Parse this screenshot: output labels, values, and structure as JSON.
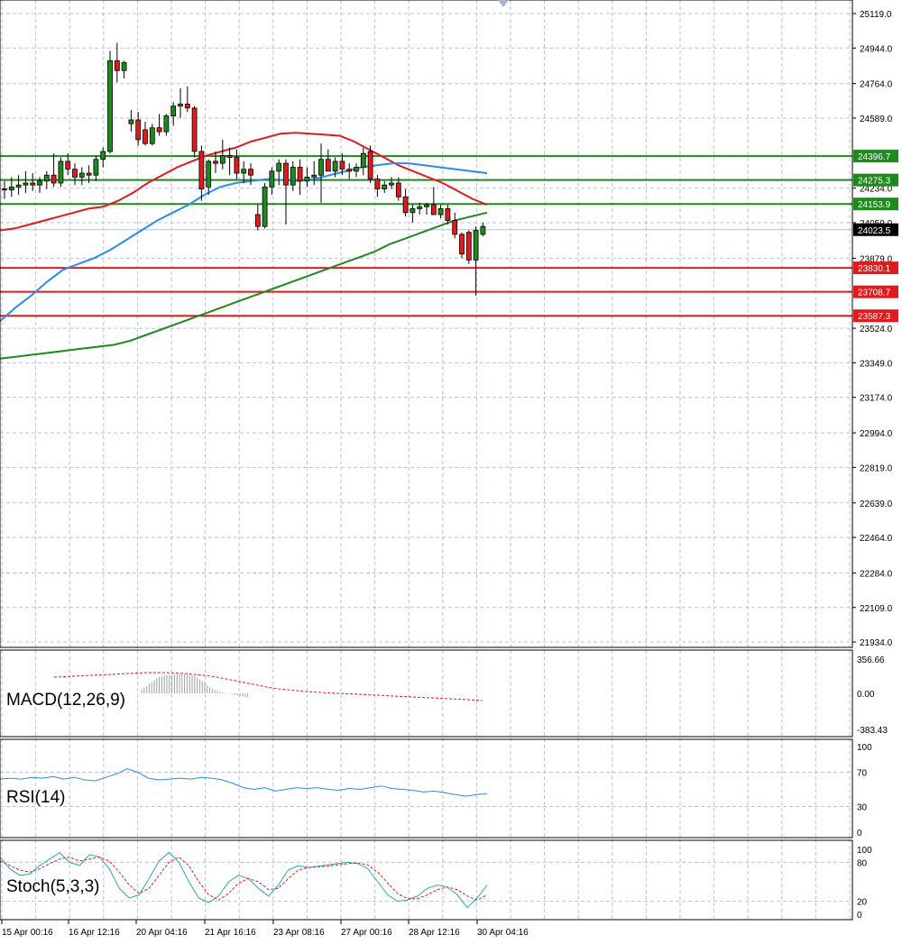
{
  "chart_data": [
    {
      "type": "candlestick",
      "pane": "price",
      "y_ticks": [
        "25119.0",
        "24944.0",
        "24764.0",
        "24589.0",
        "24234.0",
        "24059.0",
        "23879.0",
        "23524.0",
        "23349.0",
        "23174.0",
        "22994.0",
        "22819.0",
        "22639.0",
        "22464.0",
        "22284.0",
        "22109.0",
        "21934.0"
      ],
      "ylim": [
        21934,
        25119
      ],
      "current_price": "24023.5",
      "level_labels": {
        "resistance": [
          "24396.7",
          "24275.3",
          "24153.9"
        ],
        "support": [
          "23830.1",
          "23708.7",
          "23587.3"
        ]
      },
      "resistance_levels": [
        24396.7,
        24275.3,
        24153.9
      ],
      "support_levels": [
        23830.1,
        23708.7,
        23587.3
      ],
      "x_labels": [
        "15 Apr 00:16",
        "16 Apr 12:16",
        "20 Apr 04:16",
        "21 Apr 16:16",
        "23 Apr 08:16",
        "27 Apr 00:16",
        "28 Apr 12:16",
        "30 Apr 04:16"
      ],
      "candles": [
        {
          "o": 24230,
          "h": 24270,
          "l": 24180,
          "c": 24225
        },
        {
          "o": 24225,
          "h": 24290,
          "l": 24190,
          "c": 24240
        },
        {
          "o": 24240,
          "h": 24300,
          "l": 24200,
          "c": 24250
        },
        {
          "o": 24250,
          "h": 24320,
          "l": 24210,
          "c": 24260
        },
        {
          "o": 24260,
          "h": 24310,
          "l": 24220,
          "c": 24250
        },
        {
          "o": 24250,
          "h": 24290,
          "l": 24210,
          "c": 24270
        },
        {
          "o": 24270,
          "h": 24320,
          "l": 24230,
          "c": 24300
        },
        {
          "o": 24300,
          "h": 24410,
          "l": 24240,
          "c": 24260
        },
        {
          "o": 24260,
          "h": 24390,
          "l": 24240,
          "c": 24370
        },
        {
          "o": 24370,
          "h": 24410,
          "l": 24300,
          "c": 24330
        },
        {
          "o": 24330,
          "h": 24360,
          "l": 24250,
          "c": 24290
        },
        {
          "o": 24290,
          "h": 24340,
          "l": 24250,
          "c": 24310
        },
        {
          "o": 24310,
          "h": 24350,
          "l": 24260,
          "c": 24300
        },
        {
          "o": 24300,
          "h": 24400,
          "l": 24270,
          "c": 24380
        },
        {
          "o": 24380,
          "h": 24440,
          "l": 24340,
          "c": 24420
        },
        {
          "o": 24420,
          "h": 24930,
          "l": 24410,
          "c": 24880
        },
        {
          "o": 24880,
          "h": 24970,
          "l": 24770,
          "c": 24830
        },
        {
          "o": 24830,
          "h": 24880,
          "l": 24790,
          "c": 24870
        },
        {
          "o": 24560,
          "h": 24630,
          "l": 24520,
          "c": 24580
        },
        {
          "o": 24580,
          "h": 24620,
          "l": 24450,
          "c": 24480
        },
        {
          "o": 24530,
          "h": 24570,
          "l": 24450,
          "c": 24460
        },
        {
          "o": 24460,
          "h": 24560,
          "l": 24450,
          "c": 24540
        },
        {
          "o": 24540,
          "h": 24610,
          "l": 24500,
          "c": 24520
        },
        {
          "o": 24520,
          "h": 24610,
          "l": 24500,
          "c": 24600
        },
        {
          "o": 24600,
          "h": 24670,
          "l": 24550,
          "c": 24650
        },
        {
          "o": 24650,
          "h": 24740,
          "l": 24590,
          "c": 24660
        },
        {
          "o": 24660,
          "h": 24750,
          "l": 24620,
          "c": 24640
        },
        {
          "o": 24640,
          "h": 24650,
          "l": 24390,
          "c": 24420
        },
        {
          "o": 24420,
          "h": 24450,
          "l": 24170,
          "c": 24230
        },
        {
          "o": 24240,
          "h": 24380,
          "l": 24200,
          "c": 24370
        },
        {
          "o": 24370,
          "h": 24420,
          "l": 24310,
          "c": 24360
        },
        {
          "o": 24360,
          "h": 24480,
          "l": 24330,
          "c": 24400
        },
        {
          "o": 24400,
          "h": 24440,
          "l": 24300,
          "c": 24390
        },
        {
          "o": 24390,
          "h": 24430,
          "l": 24280,
          "c": 24310
        },
        {
          "o": 24310,
          "h": 24370,
          "l": 24260,
          "c": 24330
        },
        {
          "o": 24330,
          "h": 24360,
          "l": 24250,
          "c": 24300
        },
        {
          "o": 24100,
          "h": 24150,
          "l": 24020,
          "c": 24040
        },
        {
          "o": 24040,
          "h": 24260,
          "l": 24030,
          "c": 24240
        },
        {
          "o": 24240,
          "h": 24340,
          "l": 24200,
          "c": 24320
        },
        {
          "o": 24320,
          "h": 24380,
          "l": 24250,
          "c": 24360
        },
        {
          "o": 24360,
          "h": 24380,
          "l": 24050,
          "c": 24250
        },
        {
          "o": 24250,
          "h": 24370,
          "l": 24220,
          "c": 24340
        },
        {
          "o": 24340,
          "h": 24380,
          "l": 24200,
          "c": 24270
        },
        {
          "o": 24270,
          "h": 24340,
          "l": 24240,
          "c": 24290
        },
        {
          "o": 24290,
          "h": 24370,
          "l": 24250,
          "c": 24300
        },
        {
          "o": 24300,
          "h": 24460,
          "l": 24160,
          "c": 24380
        },
        {
          "o": 24380,
          "h": 24430,
          "l": 24320,
          "c": 24320
        },
        {
          "o": 24320,
          "h": 24390,
          "l": 24290,
          "c": 24370
        },
        {
          "o": 24370,
          "h": 24410,
          "l": 24300,
          "c": 24330
        },
        {
          "o": 24330,
          "h": 24360,
          "l": 24280,
          "c": 24320
        },
        {
          "o": 24320,
          "h": 24360,
          "l": 24290,
          "c": 24340
        },
        {
          "o": 24340,
          "h": 24440,
          "l": 24300,
          "c": 24410
        },
        {
          "o": 24420,
          "h": 24450,
          "l": 24260,
          "c": 24280
        },
        {
          "o": 24280,
          "h": 24300,
          "l": 24190,
          "c": 24230
        },
        {
          "o": 24230,
          "h": 24270,
          "l": 24210,
          "c": 24250
        },
        {
          "o": 24250,
          "h": 24290,
          "l": 24230,
          "c": 24260
        },
        {
          "o": 24260,
          "h": 24290,
          "l": 24170,
          "c": 24190
        },
        {
          "o": 24190,
          "h": 24230,
          "l": 24090,
          "c": 24110
        },
        {
          "o": 24110,
          "h": 24150,
          "l": 24060,
          "c": 24130
        },
        {
          "o": 24130,
          "h": 24160,
          "l": 24100,
          "c": 24140
        },
        {
          "o": 24140,
          "h": 24160,
          "l": 24100,
          "c": 24150
        },
        {
          "o": 24150,
          "h": 24240,
          "l": 24100,
          "c": 24100
        },
        {
          "o": 24100,
          "h": 24150,
          "l": 24080,
          "c": 24130
        },
        {
          "o": 24130,
          "h": 24150,
          "l": 24050,
          "c": 24070
        },
        {
          "o": 24070,
          "h": 24110,
          "l": 23980,
          "c": 24000
        },
        {
          "o": 24000,
          "h": 24010,
          "l": 23880,
          "c": 23900
        },
        {
          "o": 24010,
          "h": 24020,
          "l": 23850,
          "c": 23870
        },
        {
          "o": 23870,
          "h": 24040,
          "l": 23690,
          "c": 24020
        },
        {
          "o": 24000,
          "h": 24060,
          "l": 23990,
          "c": 24040
        }
      ],
      "series": [
        {
          "name": "MA red",
          "color": "#e31a1c",
          "values": [
            24020,
            24030,
            24050,
            24070,
            24090,
            24110,
            24130,
            24140,
            24170,
            24210,
            24260,
            24300,
            24340,
            24370,
            24400,
            24420,
            24440,
            24470,
            24490,
            24510,
            24515,
            24510,
            24505,
            24500,
            24470,
            24430,
            24390,
            24350,
            24320,
            24290,
            24260,
            24220,
            24180,
            24150
          ]
        },
        {
          "name": "MA blue",
          "color": "#2b8ce8",
          "values": [
            23560,
            23630,
            23690,
            23760,
            23820,
            23850,
            23880,
            23920,
            23970,
            24020,
            24070,
            24110,
            24150,
            24200,
            24240,
            24260,
            24270,
            24280,
            24275,
            24270,
            24280,
            24300,
            24320,
            24340,
            24350,
            24360,
            24360,
            24350,
            24340,
            24330,
            24320,
            24310
          ]
        },
        {
          "name": "MA green",
          "color": "#1e8a1e",
          "values": [
            23370,
            23380,
            23390,
            23400,
            23410,
            23420,
            23430,
            23440,
            23460,
            23490,
            23520,
            23550,
            23580,
            23610,
            23640,
            23670,
            23700,
            23730,
            23760,
            23790,
            23820,
            23850,
            23880,
            23910,
            23950,
            23980,
            24010,
            24040,
            24070,
            24090,
            24110
          ]
        }
      ]
    },
    {
      "type": "histogram",
      "pane": "macd",
      "label": "MACD(12,26,9)",
      "y_ticks": [
        "356.66",
        "0.00",
        "-383.43"
      ],
      "histogram": [
        40,
        55,
        70,
        95,
        110,
        130,
        150,
        160,
        170,
        175,
        178,
        180,
        182,
        184,
        186,
        188,
        190,
        190,
        188,
        185,
        180,
        170,
        155,
        140,
        120,
        100,
        80,
        60,
        45,
        35,
        25,
        15,
        10,
        5,
        0,
        -5,
        -10,
        -15,
        -20,
        -25,
        -30,
        -35,
        -40
      ],
      "signal": [
        160,
        165,
        170,
        175,
        180,
        185,
        190,
        195,
        200,
        205,
        205,
        205,
        200,
        195,
        185,
        175,
        160,
        140,
        120,
        100,
        80,
        60,
        45,
        35,
        25,
        15,
        10,
        5,
        0,
        -5,
        -10,
        -15,
        -20,
        -25,
        -30,
        -35,
        -40,
        -45,
        -50,
        -55,
        -60,
        -65,
        -70
      ]
    },
    {
      "type": "line",
      "pane": "rsi",
      "label": "RSI(14)",
      "y_ticks": [
        "100",
        "70",
        "30",
        "0"
      ],
      "levels": [
        70,
        30
      ],
      "values": [
        62,
        63,
        62,
        64,
        63,
        65,
        62,
        64,
        61,
        60,
        64,
        68,
        74,
        70,
        63,
        61,
        62,
        63,
        62,
        64,
        63,
        61,
        57,
        52,
        50,
        52,
        48,
        50,
        52,
        51,
        52,
        50,
        49,
        51,
        50,
        52,
        54,
        51,
        50,
        49,
        47,
        48,
        46,
        44,
        42,
        44,
        45
      ]
    },
    {
      "type": "line",
      "pane": "stoch",
      "label": "Stoch(5,3,3)",
      "y_ticks": [
        "100",
        "80",
        "20",
        "0"
      ],
      "levels": [
        80,
        20
      ],
      "main": [
        88,
        70,
        60,
        62,
        75,
        85,
        95,
        80,
        75,
        92,
        88,
        70,
        40,
        25,
        30,
        55,
        82,
        95,
        80,
        50,
        25,
        18,
        28,
        50,
        60,
        55,
        40,
        28,
        45,
        68,
        75,
        72,
        74,
        76,
        78,
        80,
        78,
        70,
        50,
        30,
        20,
        22,
        28,
        40,
        45,
        42,
        30,
        10,
        25,
        45
      ],
      "signal": [
        82,
        75,
        68,
        65,
        70,
        78,
        85,
        88,
        82,
        85,
        88,
        82,
        65,
        45,
        32,
        40,
        60,
        80,
        88,
        75,
        50,
        30,
        22,
        32,
        48,
        55,
        50,
        38,
        40,
        55,
        68,
        72,
        73,
        74,
        76,
        78,
        79,
        76,
        65,
        48,
        32,
        24,
        24,
        30,
        38,
        42,
        38,
        28,
        22,
        30
      ]
    }
  ]
}
